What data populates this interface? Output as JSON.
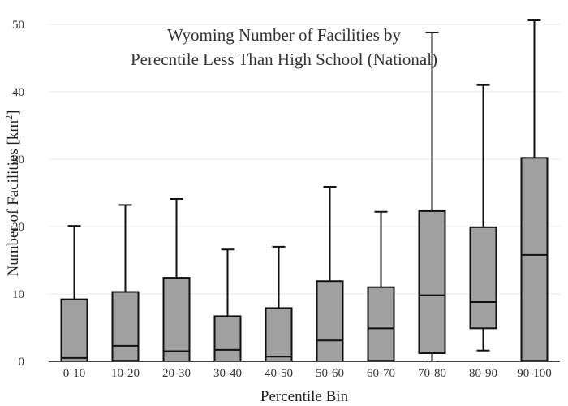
{
  "chart_data": {
    "type": "box",
    "title_lines": [
      "Wyoming Number of Facilities by",
      "Perecntile Less Than High School (National)"
    ],
    "xlabel": "Percentile Bin",
    "ylabel_main": "Number of Facilities  [km",
    "ylabel_sup": "2",
    "ylabel_close": "]",
    "ylim": [
      0,
      50
    ],
    "yticks": [
      0,
      10,
      20,
      30,
      40,
      50
    ],
    "grid": true,
    "categories": [
      "0-10",
      "10-20",
      "20-30",
      "30-40",
      "40-50",
      "50-60",
      "60-70",
      "70-80",
      "80-90",
      "90-100"
    ],
    "boxes": [
      {
        "min": 0,
        "q1": 0,
        "median": 0.5,
        "q3": 9.2,
        "max": 20.1
      },
      {
        "min": 0,
        "q1": 0.1,
        "median": 2.3,
        "q3": 10.3,
        "max": 23.2
      },
      {
        "min": 0,
        "q1": 0,
        "median": 1.5,
        "q3": 12.4,
        "max": 24.1
      },
      {
        "min": 0,
        "q1": 0,
        "median": 1.7,
        "q3": 6.7,
        "max": 16.6
      },
      {
        "min": 0,
        "q1": 0,
        "median": 0.7,
        "q3": 7.9,
        "max": 17.0
      },
      {
        "min": 0,
        "q1": 0,
        "median": 3.1,
        "q3": 11.9,
        "max": 25.9
      },
      {
        "min": 0,
        "q1": 0.1,
        "median": 4.9,
        "q3": 11.0,
        "max": 22.2
      },
      {
        "min": 0,
        "q1": 1.2,
        "median": 9.8,
        "q3": 22.3,
        "max": 48.8
      },
      {
        "min": 1.6,
        "q1": 4.9,
        "median": 8.8,
        "q3": 19.9,
        "max": 41.0
      },
      {
        "min": 0,
        "q1": 0.1,
        "median": 15.8,
        "q3": 30.2,
        "max": 50.6
      }
    ],
    "colors": {
      "box_fill": "#a0a0a0",
      "box_stroke": "#111111",
      "grid": "#e9e9e9"
    }
  }
}
